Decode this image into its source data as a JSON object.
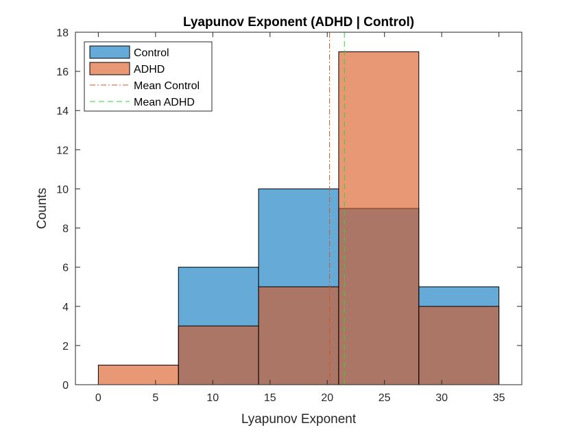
{
  "chart_data": {
    "type": "bar",
    "title": "Lyapunov Exponent (ADHD | Control)",
    "xlabel": "Lyapunov Exponent",
    "ylabel": "Counts",
    "xlim": [
      -2,
      37
    ],
    "ylim": [
      0,
      18
    ],
    "xticks": [
      0,
      5,
      10,
      15,
      20,
      25,
      30,
      35
    ],
    "yticks": [
      0,
      2,
      4,
      6,
      8,
      10,
      12,
      14,
      16,
      18
    ],
    "bin_edges": [
      0,
      7,
      14,
      21,
      28,
      35
    ],
    "series": [
      {
        "name": "Control",
        "kind": "histogram",
        "values": [
          0,
          6,
          10,
          9,
          5
        ],
        "color": "#0072BD",
        "face_alpha": 0.6
      },
      {
        "name": "ADHD",
        "kind": "histogram",
        "values": [
          1,
          3,
          5,
          17,
          4
        ],
        "color": "#D95319",
        "face_alpha": 0.6
      },
      {
        "name": "Mean Control",
        "kind": "vline",
        "x": 20.2,
        "color": "#D95319",
        "style": "dash-dot"
      },
      {
        "name": "Mean ADHD",
        "kind": "vline",
        "x": 21.5,
        "color": "#2BD92B",
        "style": "dashed"
      }
    ],
    "grid": false,
    "legend_position": "top-left"
  }
}
